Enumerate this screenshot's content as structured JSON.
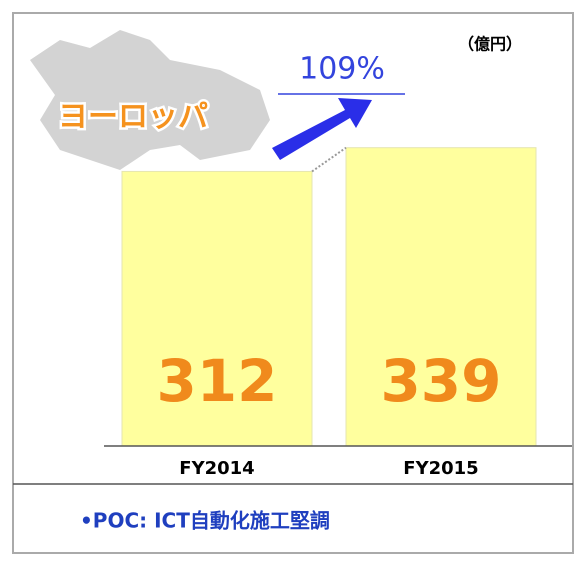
{
  "chart_data": {
    "type": "bar",
    "title": "ヨーロッパ",
    "unit_label": "（億円）",
    "growth_label": "109%",
    "categories": [
      "FY2014",
      "FY2015"
    ],
    "values": [
      312,
      339
    ],
    "color": "#ffff9e",
    "note": "•POC: ICT自動化施工堅調"
  }
}
